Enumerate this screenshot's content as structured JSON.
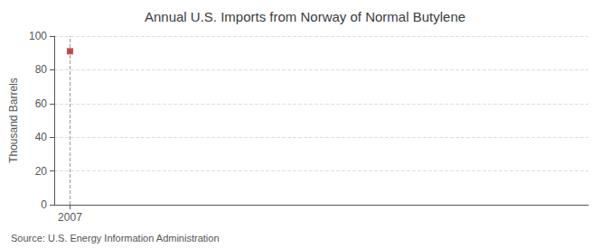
{
  "chart_data": {
    "type": "scatter",
    "title": "Annual U.S. Imports from Norway of Normal Butylene",
    "ylabel": "Thousand Barrels",
    "annotations": [
      "Source: U.S. Energy Information Administration"
    ],
    "x": [
      2007
    ],
    "values": [
      91
    ],
    "color": "#b22222",
    "marker": "square",
    "vline": {
      "x": 2007,
      "color": "#999999",
      "line_style": "dashed"
    },
    "xlim": [
      2006.3,
      2030
    ],
    "xticks": [
      2007
    ],
    "ylim": [
      0,
      100
    ],
    "yticks": [
      0,
      20,
      40,
      60,
      80,
      100
    ],
    "grid": true
  }
}
